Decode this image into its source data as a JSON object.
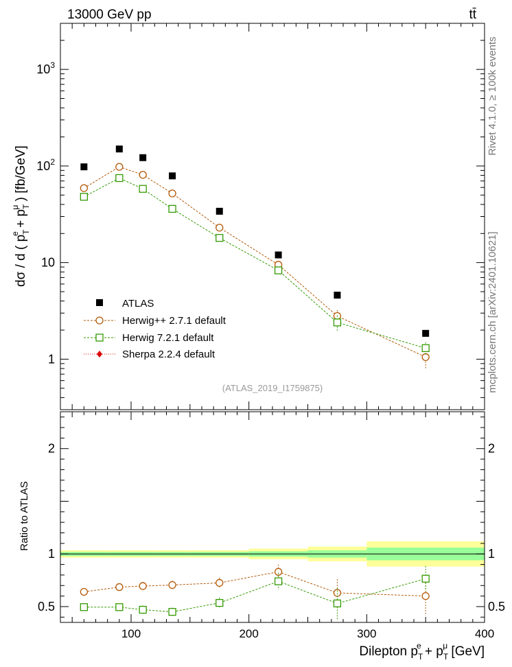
{
  "header": {
    "energy_label": "13000 GeV pp",
    "process_label": "tt̄"
  },
  "side_labels": {
    "rivet": "Rivet 4.1.0, ≥ 100k events",
    "source": "mcplots.cern.ch [arXiv:2401.10621]"
  },
  "analysis_label": "(ATLAS_2019_I1759875)",
  "colors": {
    "atlas": "#000000",
    "herwigpp": "#b35806",
    "herwig7": "#339900",
    "sherpa": "#dd0000",
    "band_inner": "#99ff99",
    "band_outer": "#ffff99"
  },
  "chart_data": [
    {
      "type": "scatter",
      "panel": "main",
      "title": "",
      "ylabel_parts": {
        "prefix": "dσ / d ( p",
        "sub1": "T",
        "sup1": "e",
        "mid": " + p",
        "sub2": "T",
        "sup2": "μ",
        "suffix": " ) [fb/GeV]"
      },
      "yscale": "log",
      "xlim": [
        40,
        400
      ],
      "ylim": [
        0.3,
        3000
      ],
      "ytick_labels": [
        {
          "value": 1,
          "base": "1",
          "exp": ""
        },
        {
          "value": 10,
          "base": "10",
          "exp": ""
        },
        {
          "value": 100,
          "base": "10",
          "exp": "2"
        },
        {
          "value": 1000,
          "base": "10",
          "exp": "3"
        }
      ],
      "x": [
        60,
        90,
        110,
        135,
        175,
        225,
        275,
        350
      ],
      "series": [
        {
          "name": "ATLAS",
          "marker": "filled-square",
          "values": [
            98,
            150,
            122,
            79,
            34,
            12,
            4.6,
            1.85
          ]
        },
        {
          "name": "Herwig++ 2.7.1 default",
          "marker": "open-circle",
          "values": [
            59,
            98,
            81,
            52,
            23,
            9.5,
            2.8,
            1.05
          ],
          "err_frac": [
            0.03,
            0.03,
            0.03,
            0.04,
            0.05,
            0.07,
            0.15,
            0.25
          ]
        },
        {
          "name": "Herwig 7.2.1 default",
          "marker": "open-square",
          "values": [
            48,
            75,
            58,
            36,
            18,
            8.3,
            2.4,
            1.3
          ],
          "err_frac": [
            0.04,
            0.04,
            0.04,
            0.05,
            0.06,
            0.08,
            0.18,
            0.15
          ]
        },
        {
          "name": "Sherpa 2.2.4 default",
          "marker": "filled-diamond",
          "values": []
        }
      ]
    },
    {
      "type": "scatter",
      "panel": "ratio",
      "ylabel": "Ratio to ATLAS",
      "xlabel_parts": {
        "prefix": "Dilepton p",
        "sub1": "T",
        "sup1": "e",
        "mid": " + p",
        "sub2": "T",
        "sup2": "μ",
        "suffix": " [GeV]"
      },
      "xlim": [
        40,
        400
      ],
      "ylim": [
        0.35,
        2.35
      ],
      "xticks": [
        100,
        200,
        300,
        400
      ],
      "yticks": [
        0.5,
        1,
        2
      ],
      "bins": [
        {
          "lo": 40,
          "hi": 80,
          "inner": 0.02,
          "outer": 0.035
        },
        {
          "lo": 80,
          "hi": 100,
          "inner": 0.02,
          "outer": 0.035
        },
        {
          "lo": 100,
          "hi": 120,
          "inner": 0.02,
          "outer": 0.035
        },
        {
          "lo": 120,
          "hi": 150,
          "inner": 0.02,
          "outer": 0.035
        },
        {
          "lo": 150,
          "hi": 200,
          "inner": 0.02,
          "outer": 0.035
        },
        {
          "lo": 200,
          "hi": 250,
          "inner": 0.025,
          "outer": 0.05
        },
        {
          "lo": 250,
          "hi": 300,
          "inner": 0.035,
          "outer": 0.07
        },
        {
          "lo": 300,
          "hi": 400,
          "inner": 0.06,
          "outer": 0.12
        }
      ],
      "x": [
        60,
        90,
        110,
        135,
        175,
        225,
        275,
        350
      ],
      "series": [
        {
          "name": "Herwig++ 2.7.1 default",
          "values": [
            0.64,
            0.685,
            0.695,
            0.705,
            0.725,
            0.83,
            0.63,
            0.6
          ],
          "err": [
            0.03,
            0.03,
            0.04,
            0.04,
            0.05,
            0.07,
            0.13,
            0.18
          ]
        },
        {
          "name": "Herwig 7.2.1 default",
          "values": [
            0.495,
            0.495,
            0.47,
            0.45,
            0.535,
            0.74,
            0.53,
            0.765
          ],
          "err": [
            0.03,
            0.03,
            0.04,
            0.04,
            0.05,
            0.08,
            0.15,
            0.12
          ]
        }
      ]
    }
  ]
}
